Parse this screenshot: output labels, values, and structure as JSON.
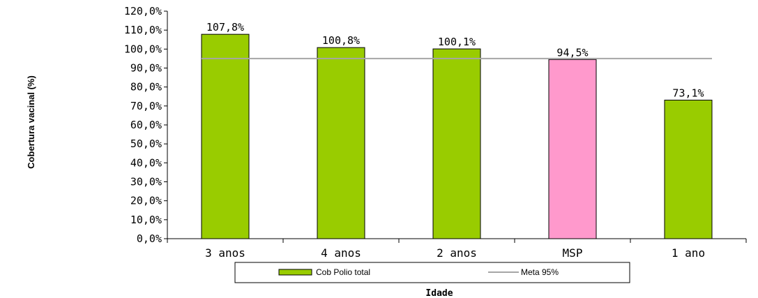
{
  "chart_data": {
    "type": "bar",
    "categories": [
      "3 anos",
      "4 anos",
      "2 anos",
      "MSP",
      "1 ano"
    ],
    "series": [
      {
        "name": "Cob Polio total",
        "values": [
          107.8,
          100.8,
          100.1,
          94.5,
          73.1
        ],
        "data_labels": [
          "107,8%",
          "100,8%",
          "100,1%",
          "94,5%",
          "73,1%"
        ]
      },
      {
        "name": "Meta 95%",
        "kind": "line",
        "values": [
          95,
          95,
          95,
          95,
          95
        ]
      }
    ],
    "bar_colors": [
      "#99CC00",
      "#99CC00",
      "#99CC00",
      "#FF99CC",
      "#99CC00"
    ],
    "line_color": "#A6A6A6",
    "xlabel": "Idade",
    "ylabel": "Cobertura vacinal (%)",
    "ylim": [
      0,
      120
    ],
    "yticks": [
      0,
      10,
      20,
      30,
      40,
      50,
      60,
      70,
      80,
      90,
      100,
      110,
      120
    ],
    "ytick_labels": [
      "0,0%",
      "10,0%",
      "20,0%",
      "30,0%",
      "40,0%",
      "50,0%",
      "60,0%",
      "70,0%",
      "80,0%",
      "90,0%",
      "100,0%",
      "110,0%",
      "120,0%"
    ],
    "grid": false,
    "legend_position": "bottom"
  }
}
